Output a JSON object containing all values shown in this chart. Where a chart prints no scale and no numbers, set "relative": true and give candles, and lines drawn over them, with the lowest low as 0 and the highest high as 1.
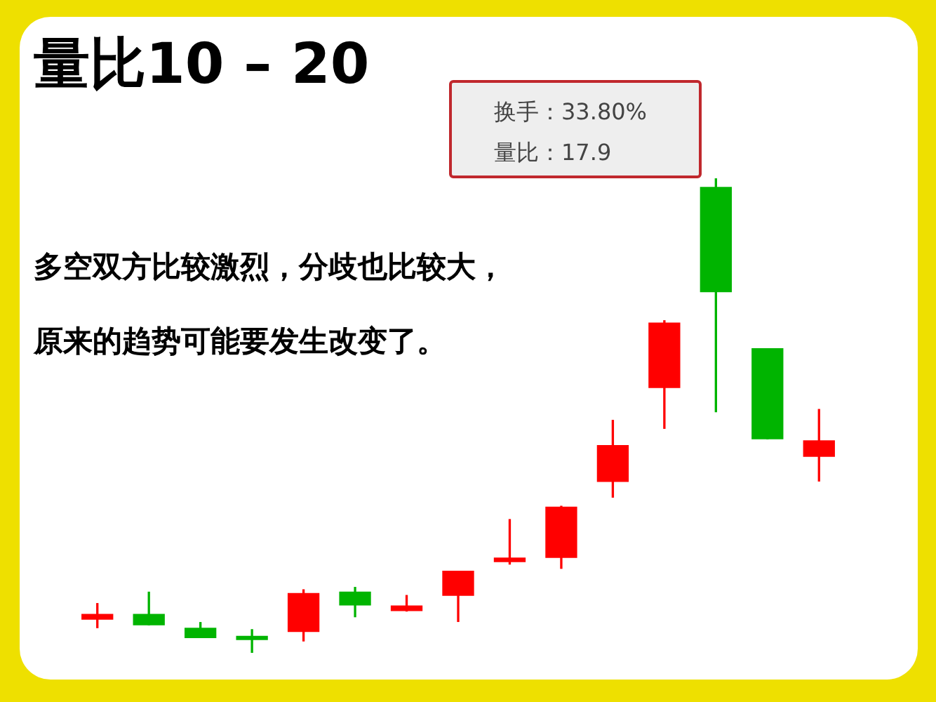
{
  "chart_data": {
    "type": "candlestick",
    "title": "量比10 – 20",
    "relative": true,
    "categories": [
      null,
      null,
      null,
      null,
      null,
      null,
      null,
      null,
      null,
      null,
      null,
      null,
      null,
      null,
      null
    ],
    "ohlc": [
      [
        0.071,
        0.104,
        0.053,
        0.081
      ],
      [
        0.081,
        0.128,
        0.059,
        0.059
      ],
      [
        0.052,
        0.064,
        0.032,
        0.032
      ],
      [
        0.035,
        0.049,
        0,
        0.028
      ],
      [
        0.045,
        0.133,
        0.025,
        0.125
      ],
      [
        0.128,
        0.138,
        0.076,
        0.101
      ],
      [
        0.089,
        0.121,
        0.088,
        0.099
      ],
      [
        0.121,
        0.172,
        0.066,
        0.172
      ],
      [
        0.192,
        0.281,
        0.187,
        0.2
      ],
      [
        0.201,
        0.309,
        0.178,
        0.307
      ],
      [
        0.361,
        0.49,
        0.328,
        0.437
      ],
      [
        0.559,
        0.7,
        0.473,
        0.695
      ],
      [
        0.981,
        1,
        0.508,
        0.761
      ],
      [
        0.641,
        0.641,
        0.451,
        0.451
      ],
      [
        0.414,
        0.513,
        0.362,
        0.447
      ]
    ],
    "colors": [
      "#ff0000",
      "#00b400",
      "#00b400",
      "#00b400",
      "#ff0000",
      "#00b400",
      "#ff0000",
      "#ff0000",
      "#ff0000",
      "#ff0000",
      "#ff0000",
      "#ff0000",
      "#00b400",
      "#00b400",
      "#ff0000"
    ],
    "annotations": [
      "换手：33.80%",
      "量比：17.9",
      "多空双方比较激烈，分歧也比较大，",
      "原来的趋势可能要发生改变了。"
    ],
    "legend": false
  }
}
